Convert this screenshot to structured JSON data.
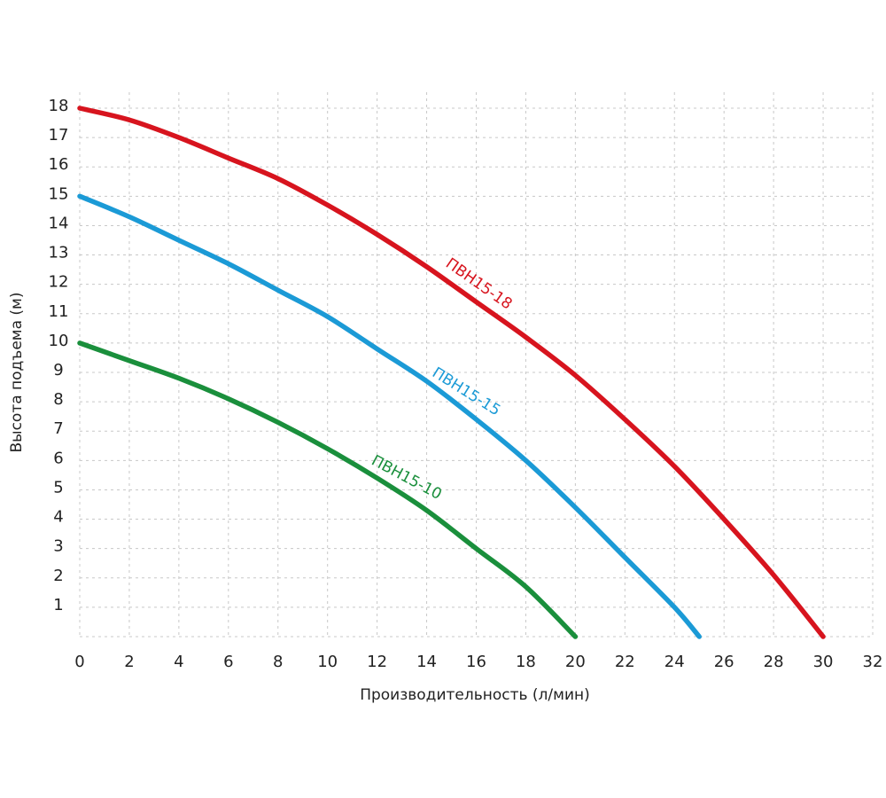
{
  "chart_data": {
    "type": "line",
    "title": "",
    "xlabel": "Производительность (л/мин)",
    "ylabel": "Высота подъема (м)",
    "xlim": [
      0,
      32
    ],
    "ylim": [
      0,
      18
    ],
    "x_ticks": [
      "0",
      "2",
      "4",
      "6",
      "8",
      "10",
      "12",
      "14",
      "16",
      "18",
      "20",
      "22",
      "24",
      "26",
      "28",
      "30",
      "32"
    ],
    "y_ticks": [
      "1",
      "2",
      "3",
      "4",
      "5",
      "6",
      "7",
      "8",
      "9",
      "10",
      "11",
      "12",
      "13",
      "14",
      "15",
      "16",
      "17",
      "18"
    ],
    "grid": true,
    "legend": "labels on lines",
    "series": [
      {
        "name": "ПВН15-18",
        "color": "#d7141e",
        "x": [
          0,
          2,
          4,
          6,
          8,
          10,
          12,
          14,
          16,
          18,
          20,
          22,
          24,
          26,
          28,
          30
        ],
        "y": [
          18,
          17.6,
          17.0,
          16.3,
          15.6,
          14.7,
          13.7,
          12.6,
          11.4,
          10.2,
          8.9,
          7.4,
          5.8,
          4.0,
          2.1,
          0
        ]
      },
      {
        "name": "ПВН15-15",
        "color": "#1b9ad6",
        "x": [
          0,
          2,
          4,
          6,
          8,
          10,
          12,
          14,
          16,
          18,
          20,
          22,
          24,
          25
        ],
        "y": [
          15,
          14.3,
          13.5,
          12.7,
          11.8,
          10.9,
          9.8,
          8.7,
          7.4,
          6.0,
          4.4,
          2.7,
          1.0,
          0
        ]
      },
      {
        "name": "ПВН15-10",
        "color": "#1a8f3c",
        "x": [
          0,
          2,
          4,
          6,
          8,
          10,
          12,
          14,
          16,
          18,
          20
        ],
        "y": [
          10,
          9.4,
          8.8,
          8.1,
          7.3,
          6.4,
          5.4,
          4.3,
          3.0,
          1.7,
          0
        ]
      }
    ]
  }
}
